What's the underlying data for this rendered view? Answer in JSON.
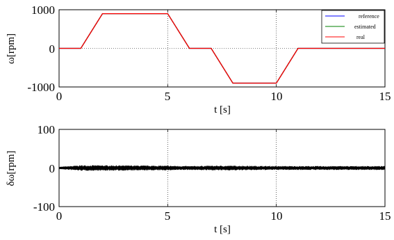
{
  "chart_data": [
    {
      "type": "line",
      "xlabel": "t [s]",
      "ylabel": "ω[rpm]",
      "xlim": [
        0,
        15
      ],
      "ylim": [
        -1000,
        1000
      ],
      "xticks": [
        "0",
        "5",
        "10",
        "15"
      ],
      "yticks": [
        "1000",
        "0",
        "-1000"
      ],
      "grid": "dotted",
      "legend_position": "top-right",
      "series": [
        {
          "name": "reference",
          "color": "#0000ff",
          "x": [
            0,
            1,
            2,
            5,
            6,
            7,
            8,
            10,
            11,
            15
          ],
          "y": [
            0,
            0,
            900,
            900,
            0,
            0,
            -900,
            -900,
            0,
            0
          ]
        },
        {
          "name": "estimated",
          "color": "#008000",
          "x": [
            0,
            1,
            2,
            5,
            6,
            7,
            8,
            10,
            11,
            15
          ],
          "y": [
            0,
            0,
            900,
            900,
            0,
            0,
            -900,
            -900,
            0,
            0
          ]
        },
        {
          "name": "real",
          "color": "#ff0000",
          "x": [
            0,
            1,
            2,
            5,
            6,
            7,
            8,
            10,
            11,
            15
          ],
          "y": [
            0,
            0,
            900,
            900,
            0,
            0,
            -900,
            -900,
            0,
            0
          ]
        }
      ]
    },
    {
      "type": "line",
      "xlabel": "t [s]",
      "ylabel": "δω[rpm]",
      "xlim": [
        0,
        15
      ],
      "ylim": [
        -100,
        100
      ],
      "xticks": [
        "0",
        "5",
        "10",
        "15"
      ],
      "yticks": [
        "100",
        "0",
        "-100"
      ],
      "grid": "dotted",
      "series": [
        {
          "color": "#000000",
          "x": [
            0,
            1,
            2,
            5,
            6,
            7,
            8,
            10,
            11,
            15
          ],
          "y_band": [
            3,
            7,
            7,
            6,
            5,
            6,
            6,
            5,
            5,
            5
          ]
        }
      ]
    }
  ]
}
